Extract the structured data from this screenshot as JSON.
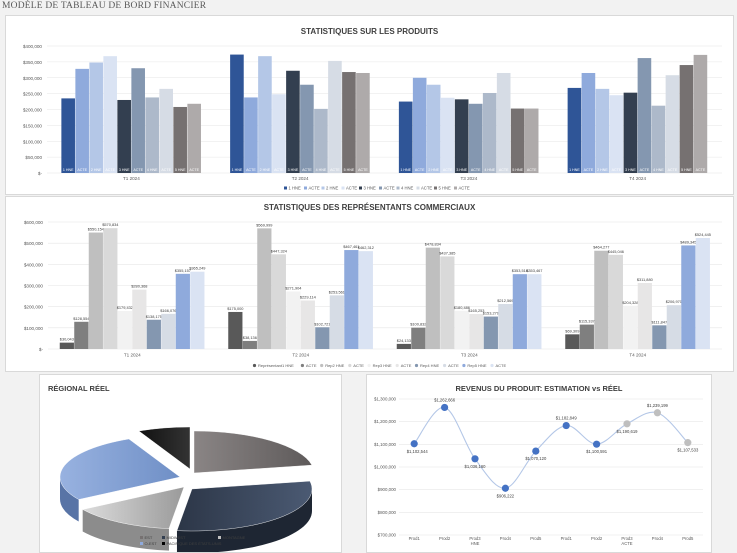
{
  "page_title": "MODÈLE DE TABLEAU DE BORD FINANCIER",
  "chart_data": [
    {
      "type": "bar",
      "title": "STATISTIQUES SUR LES PRODUITS",
      "categories": [
        "T1 2024",
        "T2 2024",
        "T3 2024",
        "T4 2024"
      ],
      "ylim": [
        0,
        400000
      ],
      "yticks": [
        "$-",
        "$50,000",
        "$100,000",
        "$150,000",
        "$200,000",
        "$250,000",
        "$300,000",
        "$350,000",
        "$400,000"
      ],
      "bar_labels": [
        "1 HNE",
        "ACTE",
        "2 HNE",
        "ACTE",
        "3 HNE",
        "ACTE",
        "4 HNE",
        "ACTE",
        "5 HNE",
        "ACTE"
      ],
      "legend_position": "bottom",
      "series": [
        {
          "name": "1 HNE",
          "color": "#2f5597",
          "values": [
            235000,
            373000,
            225000,
            268000
          ]
        },
        {
          "name": "ACTE",
          "color": "#8faadc",
          "values": [
            328000,
            238000,
            300000,
            315000
          ]
        },
        {
          "name": "2 HNE",
          "color": "#b4c7e7",
          "values": [
            348000,
            368000,
            278000,
            265000
          ]
        },
        {
          "name": "ACTE",
          "color": "#dae3f3",
          "values": [
            368000,
            248000,
            237000,
            245000
          ]
        },
        {
          "name": "3 HNE",
          "color": "#333f50",
          "values": [
            230000,
            322000,
            232000,
            253000
          ]
        },
        {
          "name": "ACTE",
          "color": "#8497b0",
          "values": [
            330000,
            278000,
            218000,
            362000
          ]
        },
        {
          "name": "4 HNE",
          "color": "#adb9ca",
          "values": [
            238000,
            202000,
            252000,
            212000
          ]
        },
        {
          "name": "ACTE",
          "color": "#d6dce5",
          "values": [
            265000,
            353000,
            315000,
            308000
          ]
        },
        {
          "name": "5 HNE",
          "color": "#767171",
          "values": [
            208000,
            318000,
            203000,
            340000
          ]
        },
        {
          "name": "ACTE",
          "color": "#aeaaaa",
          "values": [
            218000,
            315000,
            203000,
            372000
          ]
        }
      ]
    },
    {
      "type": "bar",
      "title": "STATISTIQUES DES REPRÉSENTANTS COMMERCIAUX",
      "categories": [
        "T1 2024",
        "T2 2024",
        "T3 2024",
        "T4 2024"
      ],
      "ylim": [
        0,
        600000
      ],
      "yticks": [
        "$-",
        "$100,000",
        "$200,000",
        "$300,000",
        "$400,000",
        "$500,000",
        "$600,000"
      ],
      "legend_position": "bottom",
      "series": [
        {
          "name": "Représentant1 HNE",
          "color": "#595959",
          "values": [
            30043,
            175000,
            24133,
            69309
          ],
          "labels": [
            "$30,043",
            "$175,000",
            "$24,133",
            "$69,309"
          ]
        },
        {
          "name": "ACTE",
          "color": "#7f7f7f",
          "values": [
            128554,
            38136,
            100832,
            115337
          ],
          "labels": [
            "$128,554",
            "$38,136",
            "$100,832",
            "$115,337"
          ]
        },
        {
          "name": "Rep2 HNE",
          "color": "#bfbfbf",
          "values": [
            550154,
            569999,
            478834,
            464277
          ],
          "labels": [
            "$550,154",
            "$569,999",
            "$478,834",
            "$464,277"
          ]
        },
        {
          "name": "ACTE",
          "color": "#d9d9d9",
          "values": [
            570834,
            447324,
            437385,
            445046
          ],
          "labels": [
            "$570,834",
            "$447,324",
            "$437,385",
            "$445,046"
          ]
        },
        {
          "name": "Rep3 HNE",
          "color": "#f2f2f2",
          "values": [
            179432,
            271904,
            180486,
            204328
          ],
          "labels": [
            "$179,432",
            "$271,904",
            "$180,486",
            "$204,328"
          ]
        },
        {
          "name": "ACTE",
          "color": "#e7e6e6",
          "values": [
            280368,
            229114,
            165253,
            311880
          ],
          "labels": [
            "$280,368",
            "$229,114",
            "$165,253",
            "$311,880"
          ]
        },
        {
          "name": "Rep4 HNE",
          "color": "#8497b0",
          "values": [
            138175,
            102721,
            153279,
            111847
          ],
          "labels": [
            "$138,175",
            "$102,721",
            "$153,279",
            "$111,847"
          ]
        },
        {
          "name": "ACTE",
          "color": "#d6dce5",
          "values": [
            166076,
            253561,
            212569,
            206970
          ],
          "labels": [
            "$166,076",
            "$253,561",
            "$212,569",
            "$206,970"
          ]
        },
        {
          "name": "Rep5 HNE",
          "color": "#8faadc",
          "values": [
            355157,
            467461,
            353518,
            489345
          ],
          "labels": [
            "$355,157",
            "$467,461",
            "$353,518",
            "$489,345"
          ]
        },
        {
          "name": "ACTE",
          "color": "#dae3f3",
          "values": [
            365249,
            462312,
            353467,
            524445
          ],
          "labels": [
            "$365,249",
            "$462,312",
            "$353,467",
            "$524,445"
          ]
        }
      ]
    },
    {
      "type": "pie",
      "title": "RÉGIONAL RÉEL",
      "style": "3d-exploded",
      "legend_position": "bottom",
      "slices": [
        {
          "name": "EST",
          "color": "#767171",
          "value": 22
        },
        {
          "name": "MIDWEST",
          "color": "#333f50",
          "value": 30
        },
        {
          "name": "MONTAGNE",
          "color": "#bfbfbf",
          "value": 14
        },
        {
          "name": "OUEST",
          "color": "#8faadc",
          "value": 27
        },
        {
          "name": "PACIFIQUE",
          "color": "#000000",
          "value": 7
        }
      ],
      "legend": [
        "EST",
        "MIDWEST",
        "MONTAGNE",
        "OUEST",
        "PACIFIQUE"
      ],
      "legend_visible": [
        "EST",
        "MIDWEST",
        "MONTAGNE",
        "O-EST",
        "PACIFIQUE DES ÉTATS-UNIS"
      ]
    },
    {
      "type": "line",
      "title": "REVENUS DU PRODUIT: ESTIMATION vs RÉEL",
      "ylim": [
        700000,
        1300000
      ],
      "yticks": [
        "$700,000",
        "$800,000",
        "$900,000",
        "$1,000,000",
        "$1,100,000",
        "$1,200,000",
        "$1,300,000"
      ],
      "x": [
        "Prod1",
        "Prod2",
        "Prod3",
        "Prod4",
        "Prod5",
        "Prod1",
        "Prod2",
        "Prod3",
        "Prod4",
        "Prod5"
      ],
      "x_sub": [
        "",
        "",
        "HNE",
        "",
        "",
        "",
        "",
        "ACTE",
        "",
        ""
      ],
      "values": [
        1102544,
        1262666,
        1036160,
        906222,
        1070120,
        1182849,
        1100591,
        1190619,
        1239199,
        1107533
      ],
      "labels": [
        "$1,102,544",
        "$1,262,666",
        "$1,036,160",
        "$906,222",
        "$1,070,120",
        "$1,182,849",
        "$1,100,591",
        "$1,190,619",
        "$1,239,199",
        "$1,107,533"
      ],
      "point_colors": [
        "#4472c4",
        "#4472c4",
        "#4472c4",
        "#4472c4",
        "#4472c4",
        "#4472c4",
        "#4472c4",
        "#bfbfbf",
        "#bfbfbf",
        "#bfbfbf"
      ],
      "line_color": "#b4c7e7"
    }
  ]
}
